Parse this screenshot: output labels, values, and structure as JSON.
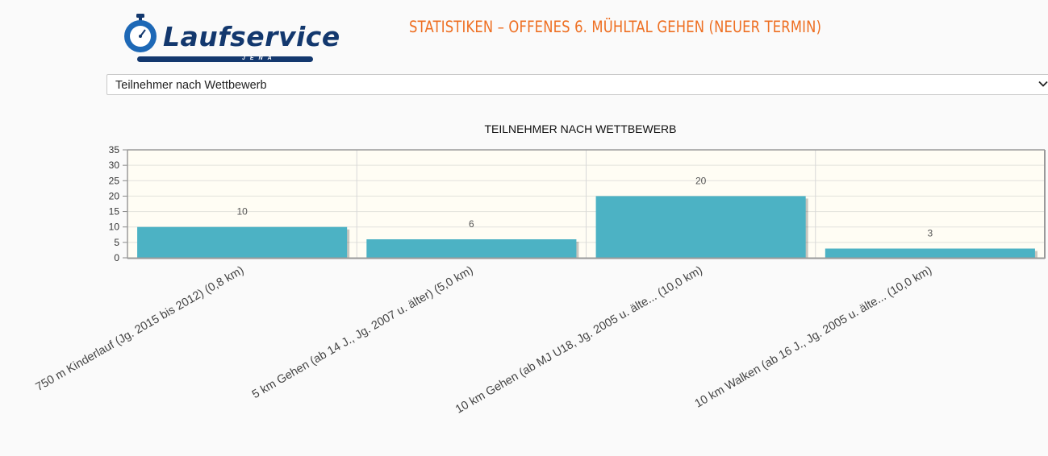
{
  "header": {
    "logo_text": "Laufservice",
    "logo_sub": "JENA",
    "title": "STATISTIKEN – OFFENES 6. MÜHLTAL GEHEN (NEUER TERMIN)"
  },
  "selector": {
    "selected": "Teilnehmer nach Wettbewerb",
    "icon": "chevron-down-icon"
  },
  "colors": {
    "accent": "#ee6f22",
    "brand": "#13386e",
    "bar": "#4cb2c4",
    "plot_bg": "#fffdf4"
  },
  "chart_data": {
    "type": "bar",
    "title": "TEILNEHMER NACH WETTBEWERB",
    "xlabel": "",
    "ylabel": "",
    "categories": [
      "750 m Kinderlauf  (Jg. 2015 bis 2012) (0,8 km)",
      "5 km Gehen (ab 14 J., Jg. 2007 u. älter) (5,0 km)",
      "10 km Gehen (ab MJ U18, Jg. 2005 u. älte... (10,0 km)",
      "10 km Walken (ab 16 J., Jg. 2005 u. älte... (10,0 km)"
    ],
    "values": [
      10,
      6,
      20,
      3
    ],
    "ylim": [
      0,
      35
    ],
    "yticks": [
      0,
      5,
      10,
      15,
      20,
      25,
      30,
      35
    ],
    "grid": true,
    "data_labels": true
  }
}
